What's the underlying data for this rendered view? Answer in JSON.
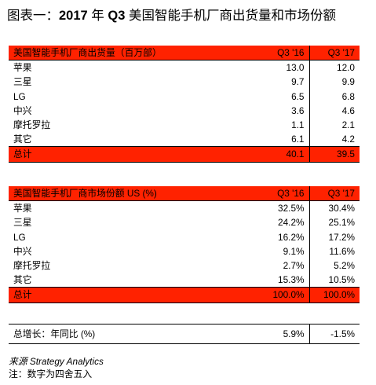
{
  "title": {
    "prefix": "图表一：",
    "year": "2017",
    "year_suffix": " 年 ",
    "quarter": "Q3",
    "rest": " 美国智能手机厂商出货量和市场份额"
  },
  "shipments": {
    "header": "美国智能手机厂商出货量（百万部）",
    "col1": "Q3 '16",
    "col2": "Q3 '17",
    "rows": [
      {
        "name": "苹果",
        "v1": "13.0",
        "v2": "12.0"
      },
      {
        "name": "三星",
        "v1": "9.7",
        "v2": "9.9"
      },
      {
        "name": "LG",
        "v1": "6.5",
        "v2": "6.8"
      },
      {
        "name": "中兴",
        "v1": "3.6",
        "v2": "4.6"
      },
      {
        "name": "摩托罗拉",
        "v1": "1.1",
        "v2": "2.1"
      },
      {
        "name": "其它",
        "v1": "6.1",
        "v2": "4.2"
      }
    ],
    "total": {
      "name": "总计",
      "v1": "40.1",
      "v2": "39.5"
    }
  },
  "share": {
    "header": "美国智能手机厂商市场份额 US (%)",
    "col1": "Q3 '16",
    "col2": "Q3 '17",
    "rows": [
      {
        "name": "苹果",
        "v1": "32.5%",
        "v2": "30.4%"
      },
      {
        "name": "三星",
        "v1": "24.2%",
        "v2": "25.1%"
      },
      {
        "name": "LG",
        "v1": "16.2%",
        "v2": "17.2%"
      },
      {
        "name": "中兴",
        "v1": "9.1%",
        "v2": "11.6%"
      },
      {
        "name": "摩托罗拉",
        "v1": "2.7%",
        "v2": "5.2%"
      },
      {
        "name": "其它",
        "v1": "15.3%",
        "v2": "10.5%"
      }
    ],
    "total": {
      "name": "总计",
      "v1": "100.0%",
      "v2": "100.0%"
    }
  },
  "growth": {
    "label": "总增长：年同比 (%)",
    "v1": "5.9%",
    "v2": "-1.5%"
  },
  "notes": {
    "source_label": "来源",
    "source_value": " Strategy Analytics",
    "note": "注：数字为四舍五入"
  }
}
